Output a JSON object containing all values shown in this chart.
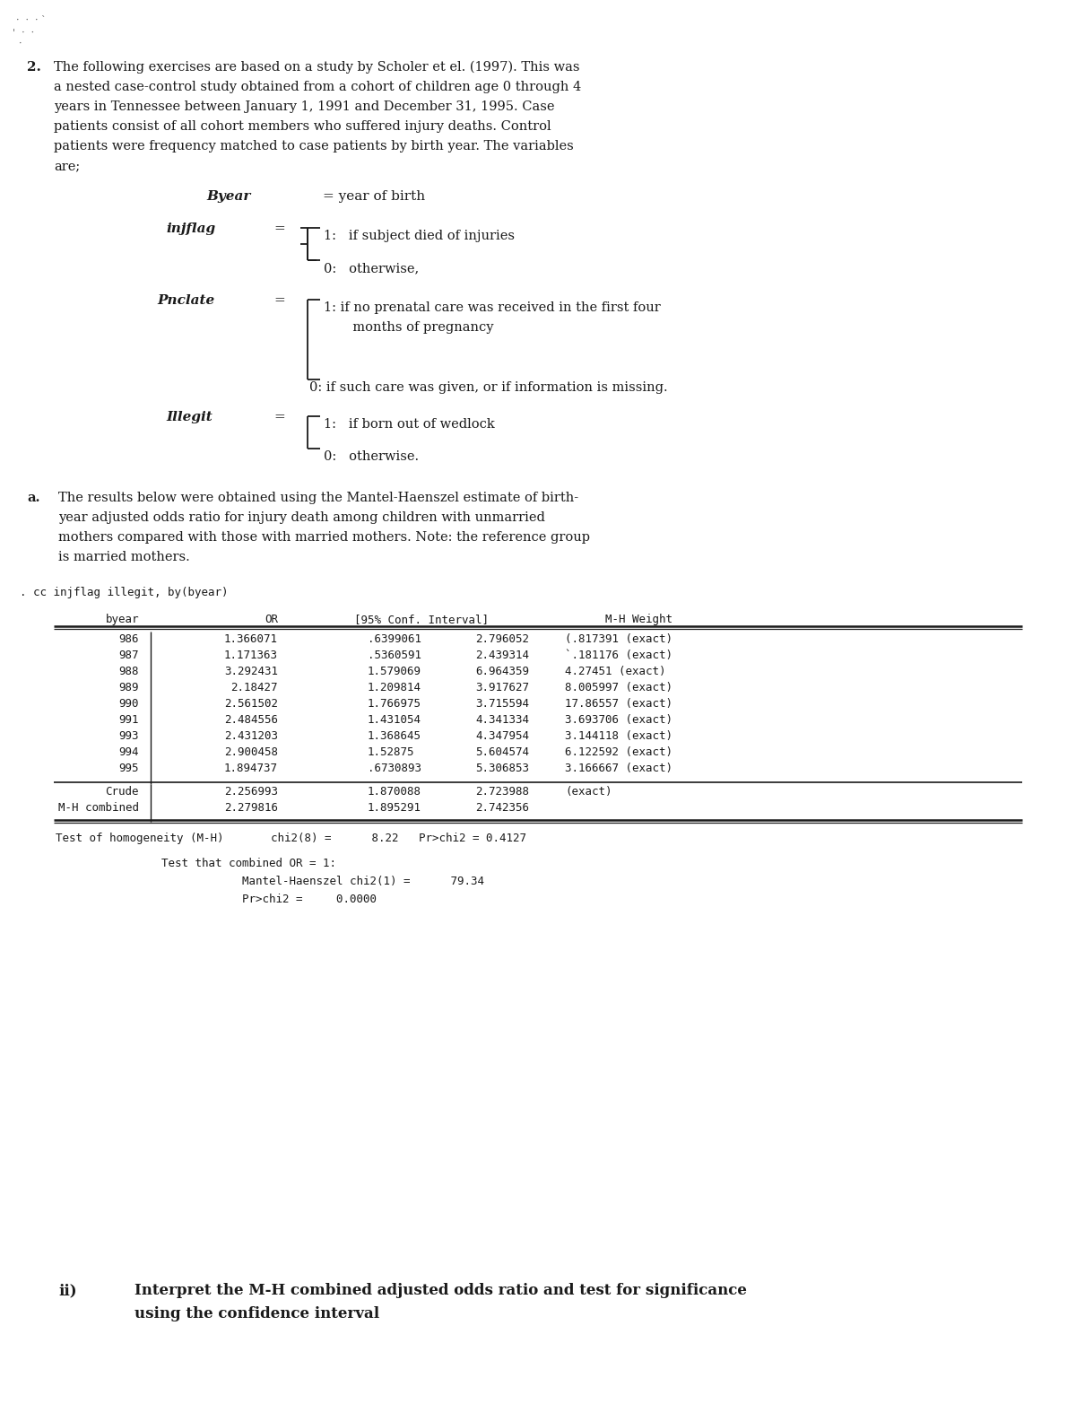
{
  "bg_color": "#ffffff",
  "text_color": "#1a1a1a",
  "question_number": "2.",
  "intro_lines": [
    "The following exercises are based on a study by Scholer et el. (1997). This was",
    "a nested case-control study obtained from a cohort of children age 0 through 4",
    "years in Tennessee between January 1, 1991 and December 31, 1995. Case",
    "patients consist of all cohort members who suffered injury deaths. Control",
    "patients were frequency matched to case patients by birth year. The variables",
    "are;"
  ],
  "byear_label": "Byear",
  "byear_def": "= year of birth",
  "injflag_label": "injflag",
  "injflag_eq": "=",
  "injflag_1": "1:   if subject died of injuries",
  "injflag_0": "0:   otherwise,",
  "pnclate_label": "Pnclate",
  "pnclate_eq": "=",
  "pnclate_1a": "1: if no prenatal care was received in the first four",
  "pnclate_1b": "       months of pregnancy",
  "pnclate_0": "0: if such care was given, or if information is missing.",
  "illegit_label": "Illegit",
  "illegit_eq": "=",
  "illegit_1": "1:   if born out of wedlock",
  "illegit_0": "0:   otherwise.",
  "part_a_label": "a.",
  "part_a_lines": [
    "The results below were obtained using the Mantel-Haenszel estimate of birth-",
    "year adjusted odds ratio for injury death among children with unmarried",
    "mothers compared with those with married mothers. Note: the reference group",
    "is married mothers."
  ],
  "stata_cmd": ". cc injflag illegit, by(byear)",
  "table_rows": [
    {
      "byear": "986",
      "or": "1.366071",
      "ci_lo": ".6399061",
      "ci_hi": "2.796052",
      "mhw": "(.817391 (exact)"
    },
    {
      "byear": "987",
      "or": "1.171363",
      "ci_lo": ".5360591",
      "ci_hi": "2.439314",
      "mhw": "`.181176 (exact)"
    },
    {
      "byear": "988",
      "or": "3.292431",
      "ci_lo": "1.579069",
      "ci_hi": "6.964359",
      "mhw": "4.27451 (exact)"
    },
    {
      "byear": "989",
      "or": "2.18427",
      "ci_lo": "1.209814",
      "ci_hi": "3.917627",
      "mhw": "8.005997 (exact)"
    },
    {
      "byear": "990",
      "or": "2.561502",
      "ci_lo": "1.766975",
      "ci_hi": "3.715594",
      "mhw": "17.86557 (exact)"
    },
    {
      "byear": "991",
      "or": "2.484556",
      "ci_lo": "1.431054",
      "ci_hi": "4.341334",
      "mhw": "3.693706 (exact)"
    },
    {
      "byear": "993",
      "or": "2.431203",
      "ci_lo": "1.368645",
      "ci_hi": "4.347954",
      "mhw": "3.144118 (exact)"
    },
    {
      "byear": "994",
      "or": "2.900458",
      "ci_lo": "1.52875",
      "ci_hi": "5.604574",
      "mhw": "6.122592 (exact)"
    },
    {
      "byear": "995",
      "or": "1.894737",
      "ci_lo": ".6730893",
      "ci_hi": "5.306853",
      "mhw": "3.166667 (exact)"
    }
  ],
  "crude_or": "2.256993",
  "crude_ci_lo": "1.870088",
  "crude_ci_hi": "2.723988",
  "crude_mhw": "(exact)",
  "mh_combined_or": "2.279816",
  "mh_combined_ci_lo": "1.895291",
  "mh_combined_ci_hi": "2.742356",
  "homogeneity_text": "Test of homogeneity (M-H)       chi2(8) =      8.22   Pr>chi2 = 0.4127",
  "combined_or_line1": "Test that combined OR = 1:",
  "combined_or_line2": "Mantel-Haenszel chi2(1) =      79.34",
  "combined_or_line3": "Pr>chi2 =     0.0000",
  "part_ii_label": "ii)",
  "part_ii_line1": "Interpret the M-H combined adjusted odds ratio and test for significance",
  "part_ii_line2": "using the confidence interval"
}
